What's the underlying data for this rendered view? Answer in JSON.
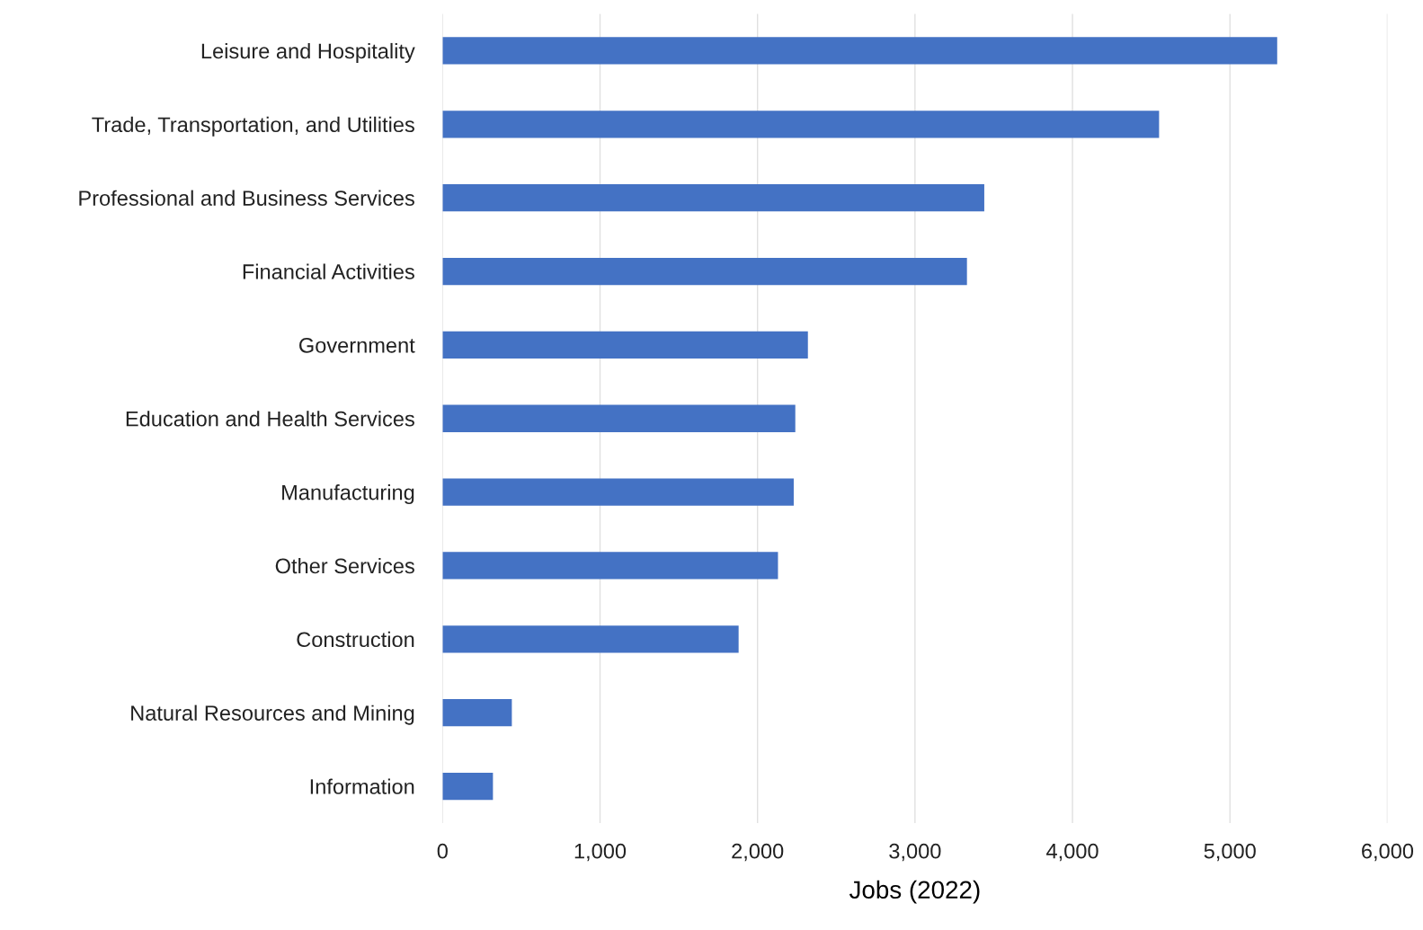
{
  "chart_data": {
    "type": "bar",
    "orientation": "horizontal",
    "xlabel": "Jobs (2022)",
    "categories": [
      "Leisure and Hospitality",
      "Trade, Transportation, and Utilities",
      "Professional and Business Services",
      "Financial Activities",
      "Government",
      "Education and Health Services",
      "Manufacturing",
      "Other Services",
      "Construction",
      "Natural Resources and Mining",
      "Information"
    ],
    "values": [
      5300,
      4550,
      3440,
      3330,
      2320,
      2240,
      2230,
      2130,
      1880,
      440,
      320
    ],
    "color": "#4472c4",
    "xlim": [
      0,
      6000
    ],
    "xticks": [
      {
        "value": 0,
        "label": "0"
      },
      {
        "value": 1000,
        "label": "1,000"
      },
      {
        "value": 2000,
        "label": "2,000"
      },
      {
        "value": 3000,
        "label": "3,000"
      },
      {
        "value": 4000,
        "label": "4,000"
      },
      {
        "value": 5000,
        "label": "5,000"
      },
      {
        "value": 6000,
        "label": "6,000"
      }
    ],
    "grid": "x",
    "legend": false
  }
}
